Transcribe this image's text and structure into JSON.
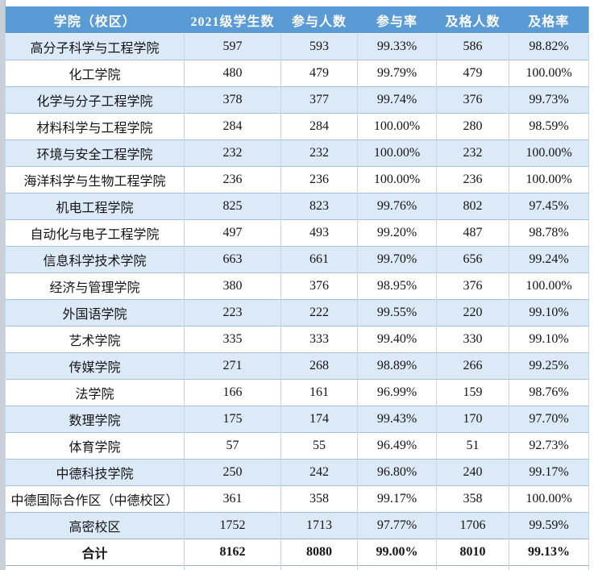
{
  "chart_data": {
    "type": "table",
    "columns": [
      "学院（校区）",
      "2021级学生数",
      "参与人数",
      "参与率",
      "及格人数",
      "及格率"
    ],
    "rows": [
      [
        "高分子科学与工程学院",
        "597",
        "593",
        "99.33%",
        "586",
        "98.82%"
      ],
      [
        "化工学院",
        "480",
        "479",
        "99.79%",
        "479",
        "100.00%"
      ],
      [
        "化学与分子工程学院",
        "378",
        "377",
        "99.74%",
        "376",
        "99.73%"
      ],
      [
        "材料科学与工程学院",
        "284",
        "284",
        "100.00%",
        "280",
        "98.59%"
      ],
      [
        "环境与安全工程学院",
        "232",
        "232",
        "100.00%",
        "232",
        "100.00%"
      ],
      [
        "海洋科学与生物工程学院",
        "236",
        "236",
        "100.00%",
        "236",
        "100.00%"
      ],
      [
        "机电工程学院",
        "825",
        "823",
        "99.76%",
        "802",
        "97.45%"
      ],
      [
        "自动化与电子工程学院",
        "497",
        "493",
        "99.20%",
        "487",
        "98.78%"
      ],
      [
        "信息科学技术学院",
        "663",
        "661",
        "99.70%",
        "656",
        "99.24%"
      ],
      [
        "经济与管理学院",
        "380",
        "376",
        "98.95%",
        "376",
        "100.00%"
      ],
      [
        "外国语学院",
        "223",
        "222",
        "99.55%",
        "220",
        "99.10%"
      ],
      [
        "艺术学院",
        "335",
        "333",
        "99.40%",
        "330",
        "99.10%"
      ],
      [
        "传媒学院",
        "271",
        "268",
        "98.89%",
        "266",
        "99.25%"
      ],
      [
        "法学院",
        "166",
        "161",
        "96.99%",
        "159",
        "98.76%"
      ],
      [
        "数理学院",
        "175",
        "174",
        "99.43%",
        "170",
        "97.70%"
      ],
      [
        "体育学院",
        "57",
        "55",
        "96.49%",
        "51",
        "92.73%"
      ],
      [
        "中德科技学院",
        "250",
        "242",
        "96.80%",
        "240",
        "99.17%"
      ],
      [
        "中德国际合作区（中德校区）",
        "361",
        "358",
        "99.17%",
        "358",
        "100.00%"
      ],
      [
        "高密校区",
        "1752",
        "1713",
        "97.77%",
        "1706",
        "99.59%"
      ]
    ],
    "total_row": [
      "合计",
      "8162",
      "8080",
      "99.00%",
      "8010",
      "99.13%"
    ],
    "layout": {
      "banding": "first data row shaded, alternating",
      "grid": "on"
    }
  },
  "colors": {
    "header_bg": "#5B9BD5",
    "header_text": "#FFFFFF",
    "band_row_bg": "#DCE9F6",
    "plain_row_bg": "#FFFFFF",
    "row_border": "#A3C2DE",
    "cell_border": "#CBD4DD",
    "frame_strip": "#CAD0D8",
    "body_text": "#141414"
  }
}
